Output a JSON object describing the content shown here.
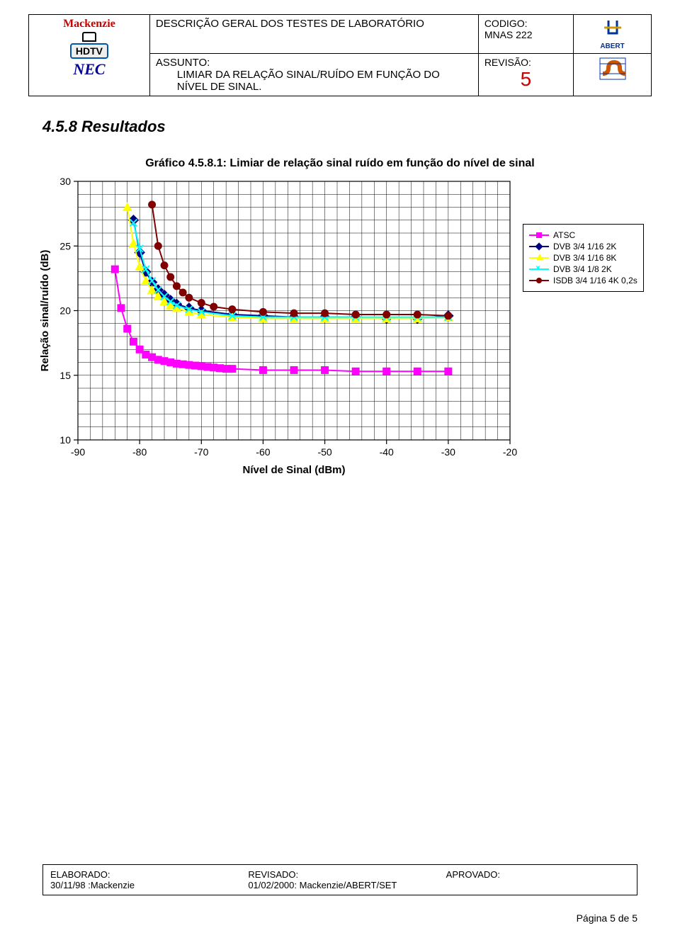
{
  "header": {
    "descricao": "DESCRIÇÃO GERAL DOS TESTES DE LABORATÓRIO",
    "codigo_label": "CODIGO:",
    "codigo": "MNAS 222",
    "assunto_label": "ASSUNTO:",
    "assunto": "LIMIAR DA RELAÇÃO SINAL/RUÍDO EM FUNÇÃO DO NÍVEL DE SINAL.",
    "revisao_label": "REVISÃO:",
    "revisao": "5",
    "logo_mackenzie": "Mackenzie",
    "logo_hdtv": "HDTV",
    "logo_nec": "NEC",
    "logo_abert": "ABERT"
  },
  "section_title": "4.5.8  Resultados",
  "chart": {
    "title": "Gráfico 4.5.8.1: Limiar de relação sinal ruído em função do nível de sinal",
    "xlabel": "Nível de Sinal (dBm)",
    "ylabel": "Relação sinal/ruído (dB)",
    "xlim": [
      -90,
      -20
    ],
    "ylim": [
      10,
      30
    ],
    "xticks": [
      -90,
      -80,
      -70,
      -60,
      -50,
      -40,
      -30,
      -20
    ],
    "yticks": [
      10,
      15,
      20,
      25,
      30
    ],
    "plot_bg": "#ffffff",
    "grid_color": "#000000",
    "grid_width": 0.5,
    "label_fontsize": 15,
    "tick_fontsize": 14,
    "series": [
      {
        "name": "ATSC",
        "color": "#ff00ff",
        "marker": "square",
        "line_width": 2,
        "x": [
          -84,
          -83,
          -82,
          -81,
          -80,
          -79,
          -78,
          -77,
          -76,
          -75,
          -74,
          -73,
          -72,
          -71,
          -70,
          -69,
          -68,
          -67,
          -66,
          -65,
          -60,
          -55,
          -50,
          -45,
          -40,
          -35,
          -30
        ],
        "y": [
          23.2,
          20.2,
          18.6,
          17.6,
          17.0,
          16.6,
          16.4,
          16.2,
          16.1,
          16.0,
          15.9,
          15.85,
          15.8,
          15.75,
          15.7,
          15.65,
          15.6,
          15.55,
          15.5,
          15.5,
          15.4,
          15.4,
          15.4,
          15.3,
          15.3,
          15.3,
          15.3
        ]
      },
      {
        "name": "DVB 3/4 1/16 2K",
        "color": "#000080",
        "marker": "diamond",
        "line_width": 2,
        "x": [
          -81,
          -80,
          -79,
          -78,
          -77,
          -76,
          -75,
          -74,
          -72,
          -70,
          -65,
          -60,
          -55,
          -50,
          -45,
          -40,
          -35,
          -30
        ],
        "y": [
          27.0,
          24.5,
          23.0,
          22.2,
          21.6,
          21.2,
          20.8,
          20.5,
          20.2,
          20.0,
          19.7,
          19.6,
          19.5,
          19.5,
          19.5,
          19.4,
          19.4,
          19.6
        ]
      },
      {
        "name": "DVB 3/4 1/16 8K",
        "color": "#ffff00",
        "marker": "triangle",
        "line_width": 2,
        "x": [
          -82,
          -81,
          -80,
          -79,
          -78,
          -77,
          -76,
          -75,
          -74,
          -72,
          -70,
          -65,
          -60,
          -55,
          -50,
          -45,
          -40,
          -35,
          -30
        ],
        "y": [
          28.0,
          25.2,
          23.4,
          22.3,
          21.6,
          21.1,
          20.7,
          20.4,
          20.2,
          19.9,
          19.7,
          19.5,
          19.4,
          19.4,
          19.4,
          19.4,
          19.4,
          19.4,
          19.5
        ]
      },
      {
        "name": "DVB 3/4 1/8 2K",
        "color": "#00ffff",
        "marker": "x",
        "line_width": 2,
        "x": [
          -81,
          -80,
          -79,
          -78,
          -77,
          -76,
          -75,
          -74,
          -72,
          -70,
          -65,
          -60,
          -55,
          -50,
          -45,
          -40,
          -35,
          -30
        ],
        "y": [
          26.8,
          24.8,
          23.2,
          22.3,
          21.6,
          21.1,
          20.7,
          20.4,
          20.1,
          19.9,
          19.6,
          19.5,
          19.5,
          19.5,
          19.5,
          19.5,
          19.5,
          19.5
        ]
      },
      {
        "name": "ISDB 3/4 1/16 4K 0,2s",
        "color": "#800000",
        "marker": "circle",
        "line_width": 2,
        "x": [
          -78,
          -77,
          -76,
          -75,
          -74,
          -73,
          -72,
          -70,
          -68,
          -65,
          -60,
          -55,
          -50,
          -45,
          -40,
          -35,
          -30
        ],
        "y": [
          28.2,
          25.0,
          23.5,
          22.6,
          21.9,
          21.4,
          21.0,
          20.6,
          20.3,
          20.1,
          19.9,
          19.8,
          19.8,
          19.7,
          19.7,
          19.7,
          19.6
        ]
      }
    ]
  },
  "footer": {
    "elaborado_label": "ELABORADO:",
    "elaborado": "30/11/98 :Mackenzie",
    "revisado_label": "REVISADO:",
    "revisado": "01/02/2000: Mackenzie/ABERT/SET",
    "aprovado_label": "APROVADO:",
    "aprovado": ""
  },
  "page_number": "Página 5 de 5"
}
